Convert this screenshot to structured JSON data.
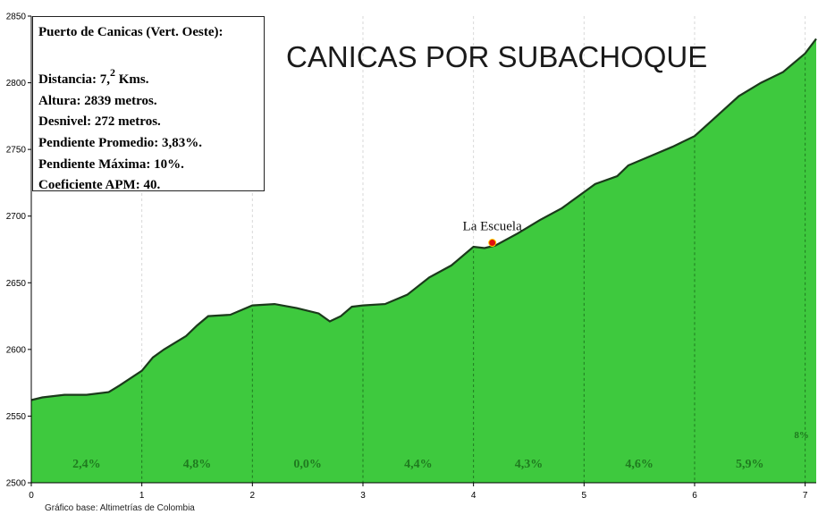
{
  "chart_data": {
    "type": "area",
    "title": "CANICAS POR SUBACHOQUE",
    "xlabel": "",
    "ylabel": "",
    "xlim": [
      0,
      7.1
    ],
    "ylim": [
      2500,
      2850
    ],
    "x_ticks": [
      "0",
      "1",
      "2",
      "3",
      "4",
      "5",
      "6",
      "7"
    ],
    "y_ticks": [
      "2500",
      "2550",
      "2600",
      "2650",
      "2700",
      "2750",
      "2800",
      "2850"
    ],
    "grid": "vertical dashed at each km",
    "fill_color": "#3ec93e",
    "line_color": "#1b3a1b",
    "series": [
      {
        "x": [
          0,
          0.1,
          0.3,
          0.5,
          0.7,
          0.8,
          1.0,
          1.1,
          1.2,
          1.4,
          1.5,
          1.6,
          1.8,
          2.0,
          2.2,
          2.4,
          2.6,
          2.7,
          2.8,
          2.9,
          3.0,
          3.2,
          3.4,
          3.6,
          3.8,
          4.0,
          4.1,
          4.2,
          4.4,
          4.6,
          4.8,
          5.0,
          5.1,
          5.3,
          5.4,
          5.6,
          5.8,
          6.0,
          6.2,
          6.4,
          6.6,
          6.8,
          7.0,
          7.1
        ],
        "y": [
          2562,
          2564,
          2566,
          2566,
          2568,
          2573,
          2584,
          2594,
          2600,
          2610,
          2618,
          2625,
          2626,
          2633,
          2634,
          2631,
          2627,
          2621,
          2625,
          2632,
          2633,
          2634,
          2641,
          2654,
          2663,
          2677,
          2676,
          2678,
          2687,
          2697,
          2706,
          2718,
          2724,
          2730,
          2738,
          2745,
          2752,
          2760,
          2775,
          2790,
          2800,
          2808,
          2822,
          2833
        ]
      }
    ],
    "segment_grades": [
      "2,4%",
      "4,8%",
      "0,0%",
      "4,4%",
      "4,3%",
      "4,6%",
      "5,9%",
      "8%"
    ],
    "annotation": {
      "label": "La Escuela",
      "x": 4.17,
      "y": 2680,
      "marker_color": "#e01010"
    }
  },
  "info": {
    "name": "Puerto de Canicas (Vert. Oeste):",
    "distance_pre": "Distancia: 7,",
    "distance_sup": "2",
    "distance_post": " Kms.",
    "altitude": "Altura: 2839 metros.",
    "climb": "Desnivel: 272 metros.",
    "avg_grade": "Pendiente Promedio: 3,83%.",
    "max_grade": "Pendiente Máxima: 10%.",
    "coefficient": "Coeficiente APM: 40."
  },
  "credit": "Gráfico base: Altimetrías de Colombia"
}
